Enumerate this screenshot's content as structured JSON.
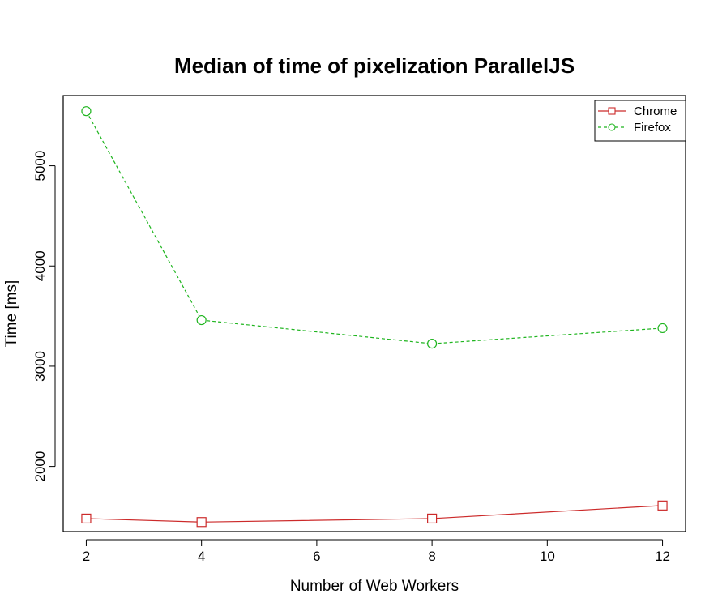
{
  "chart_data": {
    "type": "line",
    "title": "Median of time of pixelization ParallelJS",
    "xlabel": "Number of Web Workers",
    "ylabel": "Time [ms]",
    "x": [
      2,
      4,
      8,
      12
    ],
    "xticks": [
      2,
      4,
      6,
      8,
      10,
      12
    ],
    "yticks": [
      2000,
      3000,
      4000,
      5000
    ],
    "xlim": [
      1.6,
      12.4
    ],
    "ylim": [
      1350,
      5700
    ],
    "grid": false,
    "legend_position": "top-right",
    "series": [
      {
        "name": "Chrome",
        "values": [
          1480,
          1445,
          1480,
          1610
        ],
        "color": "#cc2a2a",
        "marker": "square",
        "line": "solid"
      },
      {
        "name": "Firefox",
        "values": [
          5545,
          3460,
          3225,
          3380
        ],
        "color": "#1fb51f",
        "marker": "circle",
        "line": "dashed"
      }
    ]
  }
}
